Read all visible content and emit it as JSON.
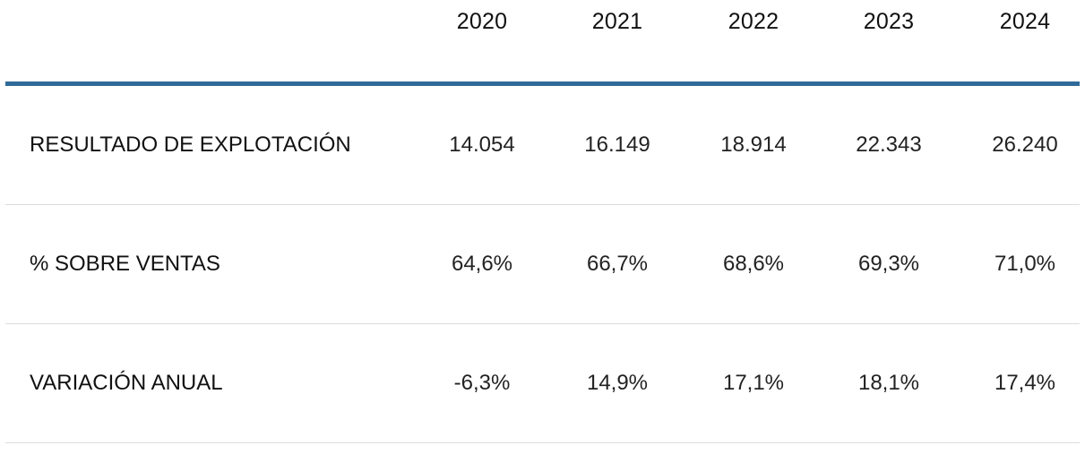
{
  "table": {
    "years": [
      "2020",
      "2021",
      "2022",
      "2023",
      "2024"
    ],
    "rows": [
      {
        "label": "RESULTADO DE EXPLOTACIÓN",
        "values": [
          "14.054",
          "16.149",
          "18.914",
          "22.343",
          "26.240"
        ]
      },
      {
        "label": "% SOBRE VENTAS",
        "values": [
          "64,6%",
          "66,7%",
          "68,6%",
          "69,3%",
          "71,0%"
        ]
      },
      {
        "label": "VARIACIÓN ANUAL",
        "values": [
          "-6,3%",
          "14,9%",
          "17,1%",
          "18,1%",
          "17,4%"
        ]
      }
    ]
  },
  "colors": {
    "header_rule": "#2f6a99",
    "row_divider": "#dcdcdc",
    "text": "#111111"
  }
}
